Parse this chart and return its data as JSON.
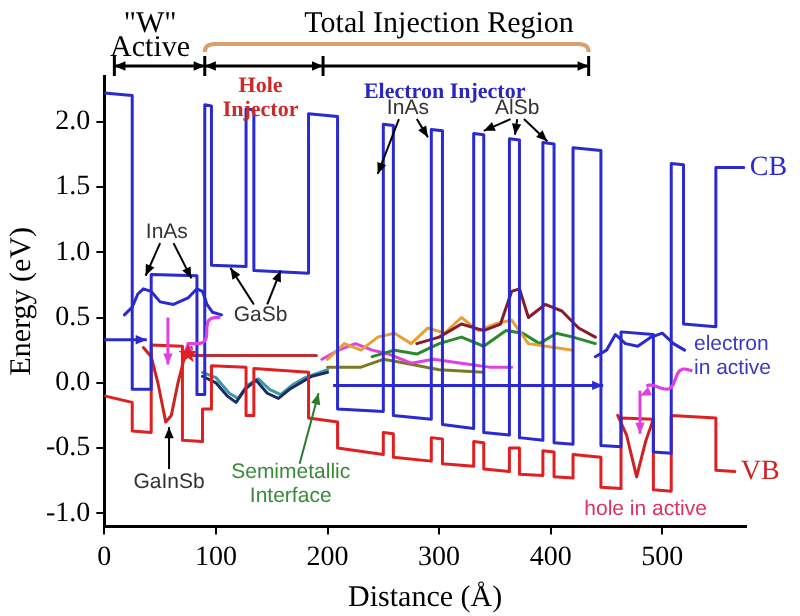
{
  "chart_data": {
    "type": "line",
    "xlabel": "Distance (Å)",
    "ylabel": "Energy (eV)",
    "xlim": [
      0,
      575
    ],
    "xticks": [
      0,
      100,
      200,
      300,
      400,
      500
    ],
    "ylim": [
      -1.1,
      2.35
    ],
    "yticks": [
      {
        "value": -1,
        "label": "-1.0"
      },
      {
        "value": -0.5,
        "label": "-0.5"
      },
      {
        "value": 0,
        "label": "0.0"
      },
      {
        "value": 0.5,
        "label": "0.5"
      },
      {
        "value": 1,
        "label": "1.0"
      },
      {
        "value": 1.5,
        "label": "1.5"
      },
      {
        "value": 2,
        "label": "2.0"
      }
    ],
    "grid": false,
    "legend": false,
    "series": [
      {
        "color": "#2a2ad0",
        "x": [
          0,
          25,
          25,
          42,
          42,
          83,
          83,
          90,
          90,
          96,
          96,
          127,
          127,
          134,
          134,
          183,
          183,
          209,
          209,
          250,
          250,
          259,
          259,
          293,
          293,
          303,
          303,
          331,
          331,
          340,
          340,
          363,
          363,
          372,
          372,
          393,
          393,
          403,
          403,
          420,
          420,
          445,
          445,
          463,
          463,
          492,
          492,
          508,
          508,
          519,
          519,
          548,
          548,
          573
        ],
        "values": [
          2.22,
          2.2,
          -0.05,
          -0.05,
          0.83,
          0.82,
          -0.09,
          -0.09,
          2.13,
          2.12,
          0.9,
          0.89,
          2.1,
          2.09,
          0.86,
          0.84,
          2.06,
          2.04,
          -0.2,
          -0.22,
          1.98,
          1.97,
          -0.25,
          -0.28,
          1.94,
          1.93,
          -0.32,
          -0.35,
          1.91,
          1.9,
          -0.38,
          -0.4,
          1.87,
          1.86,
          -0.42,
          -0.44,
          1.84,
          1.83,
          -0.46,
          -0.47,
          1.8,
          1.78,
          -0.48,
          -0.49,
          0.39,
          0.37,
          -0.53,
          -0.54,
          1.68,
          1.67,
          0.45,
          0.43,
          1.65,
          1.65
        ]
      },
      {
        "color": "#e02020",
        "x": [
          0,
          25,
          25,
          42,
          42,
          70,
          70,
          88,
          88,
          96,
          96,
          127,
          127,
          134,
          134,
          183,
          183,
          209,
          209,
          250,
          250,
          259,
          259,
          293,
          293,
          303,
          303,
          331,
          331,
          340,
          340,
          363,
          363,
          372,
          372,
          393,
          393,
          403,
          403,
          420,
          420,
          445,
          445,
          463,
          463,
          492,
          492,
          508,
          508,
          548,
          548,
          565
        ],
        "values": [
          -0.1,
          -0.15,
          -0.37,
          -0.38,
          0.29,
          0.28,
          -0.44,
          -0.45,
          -0.2,
          -0.2,
          0.13,
          0.12,
          -0.25,
          -0.25,
          0.11,
          0.08,
          -0.27,
          -0.3,
          -0.5,
          -0.55,
          -0.38,
          -0.39,
          -0.57,
          -0.6,
          -0.42,
          -0.43,
          -0.62,
          -0.64,
          -0.45,
          -0.46,
          -0.66,
          -0.68,
          -0.5,
          -0.5,
          -0.7,
          -0.71,
          -0.52,
          -0.53,
          -0.72,
          -0.73,
          -0.55,
          -0.57,
          -0.8,
          -0.81,
          -0.27,
          -0.28,
          -0.82,
          -0.83,
          -0.25,
          -0.27,
          -0.67,
          -0.68
        ]
      },
      {
        "color": "#2a2ad0",
        "x": [
          18,
          25,
          30,
          35,
          42,
          50,
          62,
          75,
          83,
          88,
          92,
          97,
          105
        ],
        "values": [
          0.52,
          0.58,
          0.68,
          0.72,
          0.7,
          0.62,
          0.6,
          0.65,
          0.72,
          0.7,
          0.6,
          0.54,
          0.52
        ]
      },
      {
        "color": "#d02020",
        "x": [
          35,
          42,
          48,
          55,
          60,
          66,
          72,
          78
        ],
        "values": [
          0.27,
          0.2,
          0,
          -0.3,
          -0.25,
          0,
          0.2,
          0.27
        ]
      },
      {
        "color": "#c03030",
        "x": [
          75,
          190
        ],
        "values": [
          0.21,
          0.21
        ]
      },
      {
        "color": "#1a2a6a",
        "x": [
          88,
          100,
          110,
          118,
          126,
          136,
          146,
          156,
          166,
          176,
          186,
          200
        ],
        "values": [
          0.05,
          0,
          -0.1,
          -0.15,
          -0.05,
          0.02,
          -0.08,
          -0.12,
          -0.05,
          0,
          0.05,
          0.08
        ]
      },
      {
        "color": "#3a9aa0",
        "x": [
          88,
          100,
          112,
          120,
          128,
          138,
          148,
          158,
          168,
          180,
          200
        ],
        "values": [
          0.08,
          0.04,
          -0.08,
          -0.12,
          -0.02,
          0.03,
          -0.05,
          -0.09,
          -0.02,
          0.04,
          0.1
        ]
      },
      {
        "color": "#8a1a2a",
        "x": [
          280,
          300,
          320,
          340,
          355,
          365,
          372,
          380,
          395,
          410,
          425,
          440
        ],
        "values": [
          0.3,
          0.35,
          0.45,
          0.4,
          0.45,
          0.7,
          0.72,
          0.5,
          0.6,
          0.55,
          0.42,
          0.35
        ]
      },
      {
        "color": "#e8a030",
        "x": [
          200,
          215,
          230,
          245,
          260,
          275,
          290,
          305,
          320,
          335,
          350,
          365,
          380,
          420
        ],
        "values": [
          0.18,
          0.3,
          0.25,
          0.35,
          0.38,
          0.3,
          0.42,
          0.38,
          0.5,
          0.4,
          0.45,
          0.48,
          0.3,
          0.25
        ]
      },
      {
        "color": "#2a8a2a",
        "x": [
          240,
          260,
          280,
          300,
          320,
          340,
          360,
          375,
          390,
          405,
          420,
          440
        ],
        "values": [
          0.2,
          0.25,
          0.22,
          0.3,
          0.35,
          0.28,
          0.4,
          0.38,
          0.3,
          0.38,
          0.35,
          0.3
        ]
      },
      {
        "color": "#e040e0",
        "x": [
          195,
          210,
          225,
          240,
          255,
          275,
          295,
          320,
          345,
          365
        ],
        "values": [
          0.18,
          0.25,
          0.3,
          0.25,
          0.22,
          0.15,
          0.18,
          0.15,
          0.12,
          0.12
        ]
      },
      {
        "color": "#7a7a20",
        "x": [
          200,
          230,
          250,
          270,
          300,
          340
        ],
        "values": [
          0.12,
          0.12,
          0.18,
          0.15,
          0.1,
          0.08
        ]
      },
      {
        "color": "#2a2ad0",
        "x": [
          440,
          450,
          458,
          467,
          478,
          490,
          500,
          510,
          520
        ],
        "values": [
          0.2,
          0.25,
          0.37,
          0.3,
          0.28,
          0.35,
          0.38,
          0.3,
          0.25
        ]
      },
      {
        "color": "#d02020",
        "x": [
          460,
          468,
          477,
          485,
          492
        ],
        "values": [
          -0.25,
          -0.4,
          -0.72,
          -0.45,
          -0.28
        ]
      }
    ],
    "annotations": [
      "\"W\" Active",
      "Total Injection Region",
      "Hole Injector",
      "Electron Injector",
      "InAs",
      "GaSb",
      "InAs",
      "AlSb",
      "GaInSb",
      "Semimetallic Interface",
      {
        "text": "CB",
        "x": 573,
        "y": 1.65
      },
      {
        "text": "VB",
        "x": 565,
        "y": -0.68
      },
      "electron in active",
      "hole in active"
    ]
  }
}
